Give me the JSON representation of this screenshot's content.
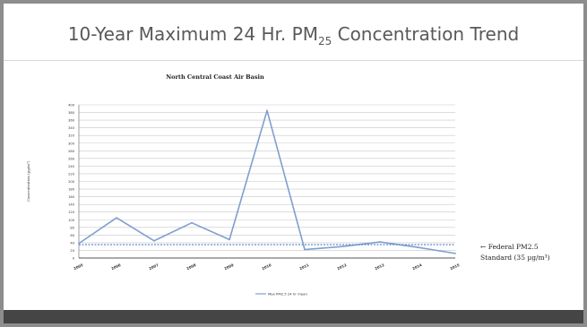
{
  "slide": {
    "title_main": "10-Year Maximum 24 Hr. PM",
    "title_sub": "25",
    "title_end": " Concentration Trend"
  },
  "chart_data": {
    "type": "line",
    "title": "North Central Coast Air Basin",
    "ylabel": "Concentration (µg/m³)",
    "xlabel": "",
    "ylim": [
      0,
      400
    ],
    "yticks": [
      0,
      20,
      40,
      60,
      80,
      100,
      120,
      140,
      160,
      180,
      200,
      220,
      240,
      260,
      280,
      300,
      320,
      340,
      360,
      380,
      400
    ],
    "categories": [
      "2005",
      "2006",
      "2007",
      "2008",
      "2009",
      "2010",
      "2011",
      "2012",
      "2013",
      "2014",
      "2015"
    ],
    "series": [
      {
        "name": "Max PM2.5 24 hr mean",
        "values": [
          38,
          105,
          45,
          92,
          48,
          385,
          22,
          30,
          42,
          28,
          12
        ],
        "color": "#7f9fcf"
      },
      {
        "name": "Federal PM2.5 Standard (35 µg/m³)",
        "values": [
          35,
          35,
          35,
          35,
          35,
          35,
          35,
          35,
          35,
          35,
          35
        ],
        "color": "#4f7fc7",
        "style": "dashed"
      }
    ],
    "annotation": {
      "arrow": "←",
      "line1": "Federal PM2.5",
      "line2": "Standard (35 µg/m³)"
    },
    "grid": true,
    "legend": "bottom"
  }
}
